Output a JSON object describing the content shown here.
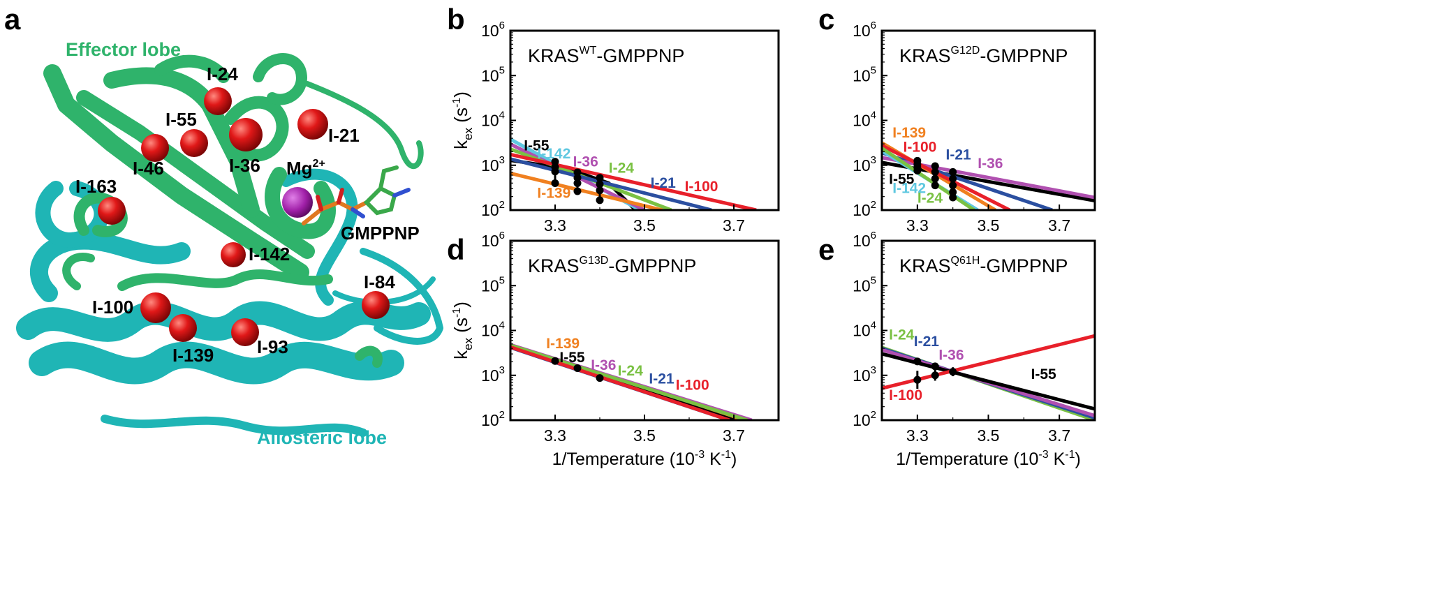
{
  "panel_letters": {
    "a": "a",
    "b": "b",
    "c": "c",
    "d": "d",
    "e": "e"
  },
  "structure": {
    "effector_label": "Effector lobe",
    "allosteric_label": "Allosteric lobe",
    "mg_label": "Mg",
    "mg_charge": "2+",
    "ligand_label": "GMPPNP",
    "colors": {
      "effector": "#2fb36b",
      "allosteric": "#1fb5b5",
      "sphere": "#e01818",
      "mg": "#a020a8"
    },
    "residues": [
      "I-24",
      "I-55",
      "I-21",
      "I-46",
      "I-36",
      "I-163",
      "I-142",
      "I-84",
      "I-100",
      "I-139",
      "I-93"
    ]
  },
  "shared_axes": {
    "ylabel_main": "k",
    "ylabel_sub": "ex",
    "ylabel_unit": "(s",
    "ylabel_exp": "-1",
    "ylabel_close": ")",
    "xlabel_main": "1/Temperature (10",
    "xlabel_exp1": "-3",
    "xlabel_mid": " K",
    "xlabel_exp2": "-1",
    "xlabel_close": ")",
    "xticks": [
      "3.3",
      "3.5",
      "3.7"
    ],
    "ytick_base": "10",
    "ytick_exps": [
      "2",
      "3",
      "4",
      "5",
      "6"
    ]
  },
  "chart_data": [
    {
      "panel": "b",
      "type": "line",
      "title_main": "KRAS",
      "title_sup": "WT",
      "title_rest": "-GMPPNP",
      "x_range": [
        3.2,
        3.8
      ],
      "y_log_range": [
        2,
        6
      ],
      "series": [
        {
          "name": "I-55",
          "color": "#000000",
          "points": [
            [
              3.2,
              3.11
            ],
            [
              3.33,
              2.92
            ],
            [
              3.42,
              2.6
            ],
            [
              3.48,
              2.0
            ]
          ],
          "label_pos": [
            3.23,
            3.33
          ],
          "label_anchor": "start"
        },
        {
          "name": "I-142",
          "color": "#5fc8e0",
          "points": [
            [
              3.2,
              3.58
            ],
            [
              3.49,
              2.0
            ]
          ],
          "label_pos": [
            3.26,
            3.15
          ],
          "label_anchor": "start"
        },
        {
          "name": "I-36",
          "color": "#b050b0",
          "points": [
            [
              3.2,
              3.47
            ],
            [
              3.5,
              2.0
            ]
          ],
          "label_pos": [
            3.34,
            2.97
          ],
          "label_anchor": "start"
        },
        {
          "name": "I-24",
          "color": "#7ac143",
          "points": [
            [
              3.2,
              3.36
            ],
            [
              3.56,
              2.0
            ]
          ],
          "label_pos": [
            3.42,
            2.83
          ],
          "label_anchor": "start"
        },
        {
          "name": "I-21",
          "color": "#2b4fa0",
          "points": [
            [
              3.2,
              3.14
            ],
            [
              3.65,
              2.0
            ]
          ],
          "label_pos": [
            3.57,
            2.5
          ],
          "label_anchor": "end"
        },
        {
          "name": "I-100",
          "color": "#e8202a",
          "points": [
            [
              3.2,
              3.24
            ],
            [
              3.75,
              2.0
            ]
          ],
          "label_pos": [
            3.59,
            2.42
          ],
          "label_anchor": "start"
        },
        {
          "name": "I-139",
          "color": "#f08020",
          "points": [
            [
              3.2,
              2.82
            ],
            [
              3.54,
              2.0
            ]
          ],
          "label_pos": [
            3.26,
            2.27
          ],
          "label_anchor": "start"
        }
      ],
      "measurements": [
        {
          "x": 3.3,
          "y": [
            3.08,
            2.96,
            2.86,
            2.6
          ]
        },
        {
          "x": 3.35,
          "y": [
            2.84,
            2.72,
            2.6,
            2.42
          ]
        },
        {
          "x": 3.4,
          "y": [
            2.72,
            2.58,
            2.44,
            2.22
          ]
        }
      ]
    },
    {
      "panel": "c",
      "type": "line",
      "title_main": "KRAS",
      "title_sup": "G12D",
      "title_rest": "-GMPPNP",
      "x_range": [
        3.2,
        3.8
      ],
      "y_log_range": [
        2,
        6
      ],
      "series": [
        {
          "name": "I-55",
          "color": "#000000",
          "points": [
            [
              3.2,
              3.06
            ],
            [
              3.8,
              2.21
            ]
          ],
          "label_pos": [
            3.22,
            2.58
          ],
          "label_anchor": "start"
        },
        {
          "name": "I-21",
          "color": "#2b4fa0",
          "points": [
            [
              3.2,
              3.28
            ],
            [
              3.68,
              2.0
            ]
          ],
          "label_pos": [
            3.38,
            3.13
          ],
          "label_anchor": "start"
        },
        {
          "name": "I-36",
          "color": "#b050b0",
          "points": [
            [
              3.2,
              3.17
            ],
            [
              3.8,
              2.28
            ]
          ],
          "label_pos": [
            3.47,
            2.93
          ],
          "label_anchor": "start"
        },
        {
          "name": "I-139",
          "color": "#f08020",
          "points": [
            [
              3.2,
              3.5
            ],
            [
              3.52,
              2.0
            ]
          ],
          "label_pos": [
            3.23,
            3.62
          ],
          "label_anchor": "start"
        },
        {
          "name": "I-100",
          "color": "#e8202a",
          "points": [
            [
              3.2,
              3.44
            ],
            [
              3.56,
              2.0
            ]
          ],
          "label_pos": [
            3.26,
            3.3
          ],
          "label_anchor": "start"
        },
        {
          "name": "I-142",
          "color": "#5fc8e0",
          "points": [
            [
              3.2,
              3.32
            ],
            [
              3.47,
              2.0
            ]
          ],
          "label_pos": [
            3.23,
            2.38
          ],
          "label_anchor": "start"
        },
        {
          "name": "I-24",
          "color": "#7ac143",
          "points": [
            [
              3.2,
              3.38
            ],
            [
              3.46,
              2.0
            ]
          ],
          "label_pos": [
            3.3,
            2.16
          ],
          "label_anchor": "start"
        }
      ],
      "measurements": [
        {
          "x": 3.3,
          "y": [
            3.1,
            3.02,
            2.95,
            2.88
          ]
        },
        {
          "x": 3.35,
          "y": [
            2.98,
            2.85,
            2.7,
            2.55
          ]
        },
        {
          "x": 3.4,
          "y": [
            2.85,
            2.7,
            2.55,
            2.4,
            2.28
          ]
        }
      ]
    },
    {
      "panel": "d",
      "type": "line",
      "title_main": "KRAS",
      "title_sup": "G13D",
      "title_rest": "-GMPPNP",
      "x_range": [
        3.2,
        3.8
      ],
      "y_log_range": [
        2,
        6
      ],
      "series": [
        {
          "name": "I-139",
          "color": "#f08020",
          "points": [
            [
              3.2,
              3.66
            ],
            [
              3.72,
              2.0
            ]
          ],
          "label_pos": [
            3.28,
            3.6
          ],
          "label_anchor": "start"
        },
        {
          "name": "I-55",
          "color": "#000000",
          "points": [
            [
              3.2,
              3.64
            ],
            [
              3.7,
              2.0
            ]
          ],
          "label_pos": [
            3.31,
            3.29
          ],
          "label_anchor": "start"
        },
        {
          "name": "I-36",
          "color": "#b050b0",
          "points": [
            [
              3.2,
              3.68
            ],
            [
              3.74,
              2.0
            ]
          ],
          "label_pos": [
            3.38,
            3.12
          ],
          "label_anchor": "start"
        },
        {
          "name": "I-24",
          "color": "#7ac143",
          "points": [
            [
              3.2,
              3.67
            ],
            [
              3.73,
              2.0
            ]
          ],
          "label_pos": [
            3.44,
            3.0
          ],
          "label_anchor": "start"
        },
        {
          "name": "I-21",
          "color": "#2b4fa0",
          "points": [
            [
              3.2,
              3.62
            ],
            [
              3.69,
              2.0
            ]
          ],
          "label_pos": [
            3.51,
            2.82
          ],
          "label_anchor": "start"
        },
        {
          "name": "I-100",
          "color": "#e8202a",
          "points": [
            [
              3.2,
              3.63
            ],
            [
              3.69,
              2.0
            ]
          ],
          "label_pos": [
            3.57,
            2.68
          ],
          "label_anchor": "start"
        }
      ],
      "measurements": [
        {
          "x": 3.3,
          "y": [
            3.32
          ]
        },
        {
          "x": 3.35,
          "y": [
            3.16
          ]
        },
        {
          "x": 3.4,
          "y": [
            2.94
          ]
        }
      ]
    },
    {
      "panel": "e",
      "type": "line",
      "title_main": "KRAS",
      "title_sup": "Q61H",
      "title_rest": "-GMPPNP",
      "x_range": [
        3.2,
        3.8
      ],
      "y_log_range": [
        2,
        6
      ],
      "series": [
        {
          "name": "I-24",
          "color": "#7ac143",
          "points": [
            [
              3.2,
              3.62
            ],
            [
              3.8,
              2.0
            ]
          ],
          "label_pos": [
            3.22,
            3.8
          ],
          "label_anchor": "start"
        },
        {
          "name": "I-21",
          "color": "#2b4fa0",
          "points": [
            [
              3.2,
              3.6
            ],
            [
              3.8,
              2.05
            ]
          ],
          "label_pos": [
            3.29,
            3.65
          ],
          "label_anchor": "start"
        },
        {
          "name": "I-36",
          "color": "#b050b0",
          "points": [
            [
              3.2,
              3.57
            ],
            [
              3.8,
              2.1
            ]
          ],
          "label_pos": [
            3.36,
            3.35
          ],
          "label_anchor": "start"
        },
        {
          "name": "I-55",
          "color": "#000000",
          "points": [
            [
              3.2,
              3.48
            ],
            [
              3.8,
              2.25
            ]
          ],
          "label_pos": [
            3.62,
            2.92
          ],
          "label_anchor": "start"
        },
        {
          "name": "I-100",
          "color": "#e8202a",
          "points": [
            [
              3.2,
              2.71
            ],
            [
              3.8,
              3.88
            ]
          ],
          "label_pos": [
            3.22,
            2.45
          ],
          "label_anchor": "start"
        }
      ],
      "measurements": [
        {
          "x": 3.3,
          "y": [
            3.31
          ],
          "err": 0.0
        },
        {
          "x": 3.3,
          "y": [
            2.9
          ],
          "err": 0.2
        },
        {
          "x": 3.35,
          "y": [
            3.2
          ],
          "err": 0.0
        },
        {
          "x": 3.35,
          "y": [
            3.0
          ],
          "err": 0.12
        },
        {
          "x": 3.4,
          "y": [
            3.08
          ],
          "err": 0.1
        }
      ]
    }
  ]
}
